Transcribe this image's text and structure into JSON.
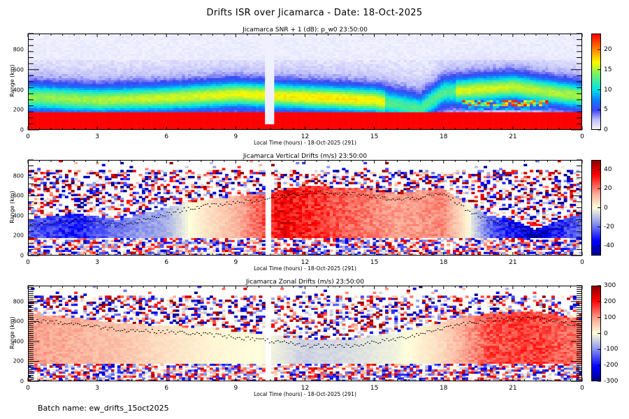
{
  "title": "Drifts ISR over Jicamarca - Date: 18-Oct-2025",
  "footer": {
    "batch_label": "Batch name: ew_drifts_15oct2025"
  },
  "chart_data": [
    {
      "type": "heatmap",
      "id": "snr",
      "title": "Jicamarca SNR + 1 (dB): p_w0 23:50:00",
      "xlabel": "Local Time (hours) - 18-Oct-2025 (291)",
      "ylabel": "Range (km)",
      "xlim": [
        0,
        24
      ],
      "ylim": [
        0,
        960
      ],
      "xticks": [
        "0",
        "3",
        "6",
        "9",
        "12",
        "15",
        "18",
        "21",
        "0"
      ],
      "yticks": [
        "0",
        "200",
        "400",
        "600",
        "800"
      ],
      "colorbar": {
        "label_ticks": [
          "0",
          "5",
          "10",
          "15",
          "20"
        ],
        "range": [
          0,
          24
        ],
        "colormap": "white-blue-cyan-green-yellow-red"
      },
      "description": "Saturated red (>22 dB) below ~180 km all day; F-region enhancement 250-450 km peaking ~12-14 dB near 1-4 h and 10-15 h; decay 16-18 h; intense 200-300 km layer near 19-22 h; data gap ~10.3-10.6 h",
      "features": {
        "e_region_top_km": 180,
        "f_layer_center_km": [
          [
            0,
            330
          ],
          [
            3,
            300
          ],
          [
            6,
            320
          ],
          [
            9,
            360
          ],
          [
            12,
            330
          ],
          [
            15,
            300
          ],
          [
            17,
            210
          ],
          [
            18,
            380
          ],
          [
            21,
            430
          ],
          [
            24,
            340
          ]
        ],
        "gap_hours": [
          10.3,
          10.6
        ]
      }
    },
    {
      "type": "heatmap",
      "id": "vertical",
      "title": "Jicamarca Vertical Drifts (m/s) 23:50:00",
      "xlabel": "Local Time (hours) - 18-Oct-2025 (291)",
      "ylabel": "Range (km)",
      "xlim": [
        0,
        24
      ],
      "ylim": [
        0,
        960
      ],
      "xticks": [
        "0",
        "3",
        "6",
        "9",
        "12",
        "15",
        "18",
        "21",
        "0"
      ],
      "yticks": [
        "0",
        "200",
        "400",
        "600",
        "800"
      ],
      "colorbar": {
        "label_ticks": [
          "-40",
          "-20",
          "0",
          "20",
          "40"
        ],
        "range": [
          -50,
          50
        ],
        "colormap": "blue-white-red"
      },
      "profile_hours": [
        0,
        2,
        4,
        6,
        7,
        9,
        10,
        11,
        12,
        14,
        16,
        18,
        19,
        20,
        21,
        22,
        23,
        24
      ],
      "profile_ms": [
        -22,
        -30,
        -18,
        -12,
        0,
        12,
        22,
        35,
        30,
        22,
        15,
        18,
        2,
        -22,
        -32,
        -40,
        -30,
        -20
      ],
      "trace_km": [
        300,
        360,
        300,
        420,
        480,
        540,
        560,
        600,
        640,
        620,
        560,
        620,
        460,
        340,
        300,
        200,
        300,
        360
      ]
    },
    {
      "type": "heatmap",
      "id": "zonal",
      "title": "Jicamarca Zonal Drifts (m/s) 23:50:00",
      "xlabel": "Local Time (hours) - 18-Oct-2025 (291)",
      "ylabel": "Range (km)",
      "xlim": [
        0,
        24
      ],
      "ylim": [
        0,
        960
      ],
      "xticks": [
        "0",
        "3",
        "6",
        "9",
        "12",
        "15",
        "18",
        "21",
        "0"
      ],
      "yticks": [
        "0",
        "200",
        "400",
        "600",
        "800"
      ],
      "colorbar": {
        "label_ticks": [
          "-300",
          "-200",
          "-100",
          "0",
          "100",
          "200",
          "300"
        ],
        "range": [
          -300,
          300
        ],
        "colormap": "blue-white-red"
      },
      "profile_hours": [
        0,
        2,
        4,
        6,
        8,
        10,
        12,
        14,
        16,
        18,
        19,
        20,
        22,
        24
      ],
      "profile_ms": [
        90,
        80,
        60,
        30,
        10,
        0,
        -40,
        -30,
        -10,
        40,
        90,
        150,
        160,
        120
      ],
      "trace_km": [
        620,
        580,
        520,
        500,
        470,
        420,
        360,
        360,
        430,
        540,
        590,
        620,
        640,
        560
      ]
    }
  ]
}
